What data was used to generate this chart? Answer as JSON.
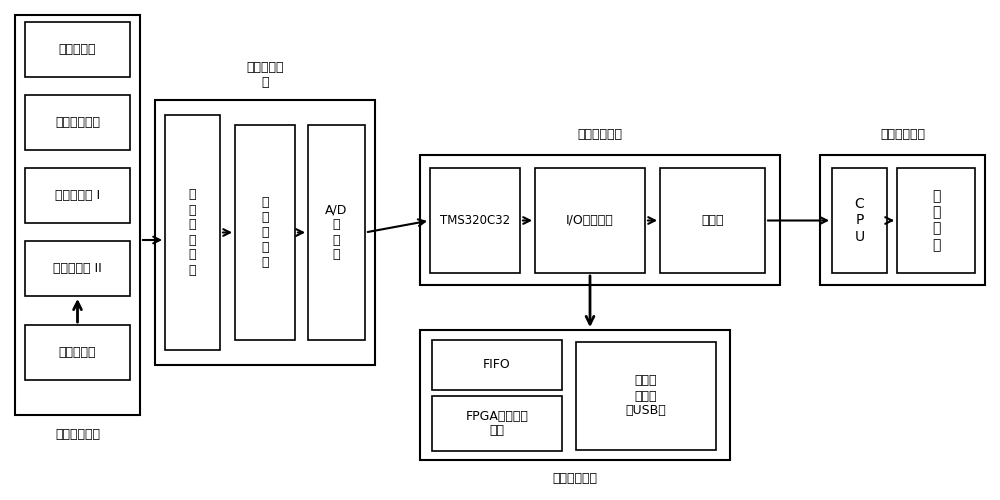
{
  "bg_color": "#ffffff",
  "line_color": "#000000",
  "sensors": [
    "位移传感器",
    "加速度传感器",
    "温度传感器 I",
    "温度传感器 II"
  ],
  "sensor_interface_label": "传感器接口",
  "signal_collect_label": "信号采集模块",
  "signal_conv_label": "信号转换模\n块",
  "cond_label": "信\n号\n调\n理\n电\n路",
  "filter_label": "信\n号\n滤\n波\n器",
  "ad_label": "A/D\n转\n换\n器",
  "signal_proc_label": "信号处理模块",
  "tms_label": "TMS320C32",
  "io_label": "I/O接口电路",
  "mem_label": "存储器",
  "signal_store_label": "信号存储模块",
  "fifo_label": "FIFO",
  "fpga_label": "FPGA逻辑控制\n模块",
  "usb_label": "数据导\n出接口\n（USB）",
  "fault_label": "故障显示模块",
  "cpu_label": "C\nP\nU",
  "display_label": "数\n据\n显\n示"
}
